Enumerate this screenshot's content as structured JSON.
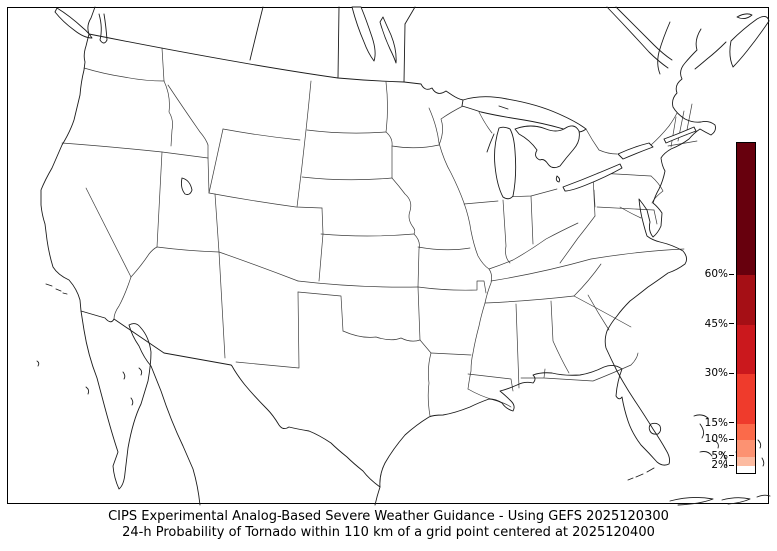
{
  "figure": {
    "background": "#ffffff",
    "frame_color": "#000000",
    "region": "CONUS"
  },
  "caption": {
    "line1": "CIPS Experimental Analog-Based Severe Weather Guidance - Using GEFS 2025120300",
    "line2": "24-h Probability of Tornado within 110 km of a grid point centered at 2025120400"
  },
  "colorbar": {
    "unit": "%",
    "vmin": 0,
    "vmax": 100,
    "ticks": [
      {
        "value": 60,
        "label": "60%"
      },
      {
        "value": 45,
        "label": "45%"
      },
      {
        "value": 30,
        "label": "30%"
      },
      {
        "value": 15,
        "label": "15%"
      },
      {
        "value": 10,
        "label": "10%"
      },
      {
        "value": 5,
        "label": "5%"
      },
      {
        "value": 2,
        "label": "2%"
      }
    ],
    "segments": [
      {
        "from": 0,
        "to": 2,
        "color": "#ffffff"
      },
      {
        "from": 2,
        "to": 5,
        "color": "#fcbba1"
      },
      {
        "from": 5,
        "to": 10,
        "color": "#fc9272"
      },
      {
        "from": 10,
        "to": 15,
        "color": "#fb6a4a"
      },
      {
        "from": 15,
        "to": 30,
        "color": "#ef3b2c"
      },
      {
        "from": 30,
        "to": 45,
        "color": "#cb181d"
      },
      {
        "from": 45,
        "to": 60,
        "color": "#a50f15"
      },
      {
        "from": 60,
        "to": 100,
        "color": "#67000d"
      }
    ]
  },
  "chart_data": {
    "type": "heatmap",
    "title": "24-h Probability of Tornado within 110 km of a grid point",
    "model": "GEFS 2025120300",
    "valid": "2025120400",
    "legend_position": "right",
    "scale_ticks_percent": [
      2,
      5,
      10,
      15,
      30,
      45,
      60
    ],
    "note": "No probability contours are drawn on the map in this frame (0% everywhere shown)"
  }
}
